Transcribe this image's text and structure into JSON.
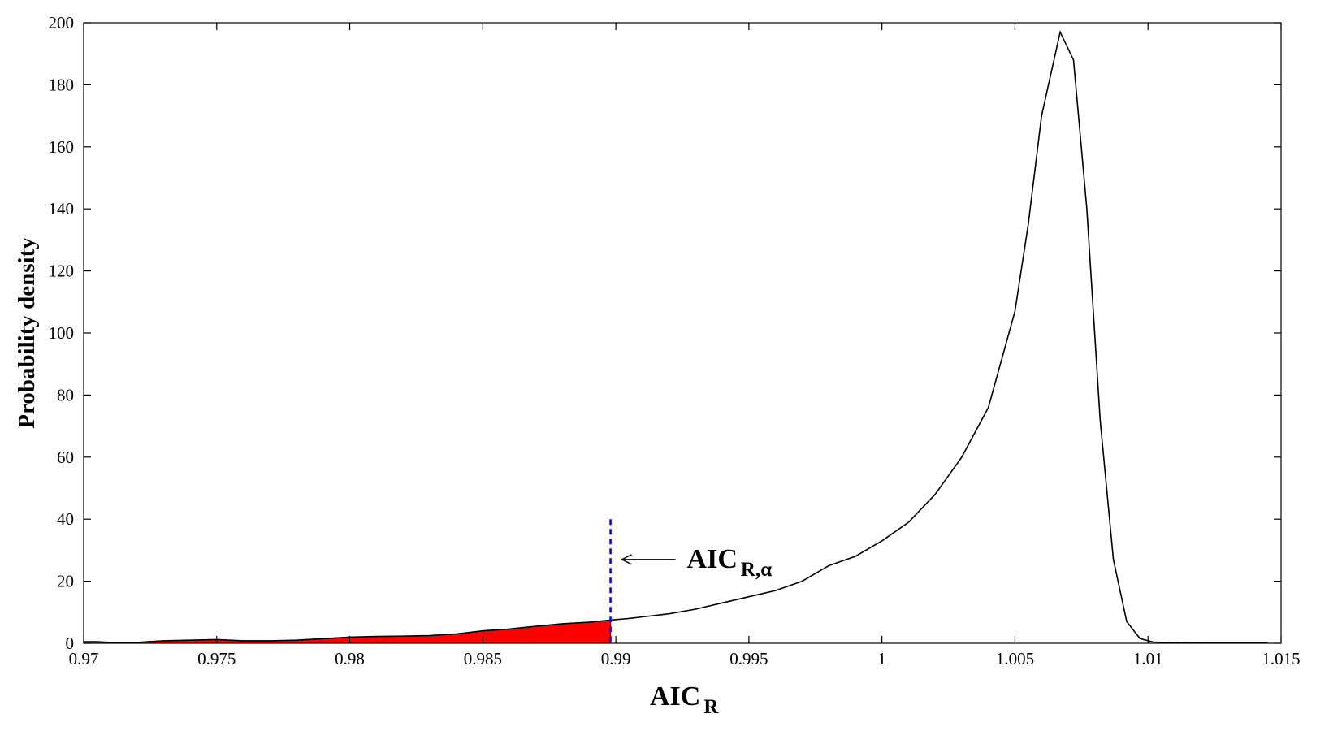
{
  "chart_data": {
    "type": "line",
    "title": "",
    "xlabel": {
      "main": "AIC",
      "sub": "R"
    },
    "ylabel": "Probability density",
    "xlim": [
      0.97,
      1.015
    ],
    "ylim": [
      0,
      200
    ],
    "grid": false,
    "x_ticks": [
      0.97,
      0.975,
      0.98,
      0.985,
      0.99,
      0.995,
      1,
      1.005,
      1.01,
      1.015
    ],
    "x_tick_labels": [
      "0.97",
      "0.975",
      "0.98",
      "0.985",
      "0.99",
      "0.995",
      "1",
      "1.005",
      "1.01",
      "1.015"
    ],
    "y_ticks": [
      0,
      20,
      40,
      60,
      80,
      100,
      120,
      140,
      160,
      180,
      200
    ],
    "y_tick_labels": [
      "0",
      "20",
      "40",
      "60",
      "80",
      "100",
      "120",
      "140",
      "160",
      "180",
      "200"
    ],
    "series": [
      {
        "color": "#000000",
        "x": [
          0.97,
          0.9705,
          0.971,
          0.9715,
          0.972,
          0.973,
          0.974,
          0.975,
          0.976,
          0.977,
          0.978,
          0.979,
          0.98,
          0.981,
          0.982,
          0.983,
          0.984,
          0.985,
          0.986,
          0.987,
          0.988,
          0.989,
          0.9898,
          0.9905,
          0.991,
          0.992,
          0.993,
          0.994,
          0.995,
          0.996,
          0.997,
          0.998,
          0.999,
          1.0,
          1.001,
          1.002,
          1.003,
          1.004,
          1.005,
          1.0055,
          1.006,
          1.0067,
          1.0072,
          1.0077,
          1.0082,
          1.0087,
          1.0092,
          1.0097,
          1.0102,
          1.011,
          1.012,
          1.013,
          1.014,
          1.0145
        ],
        "y": [
          0.5,
          0.5,
          0.3,
          0.3,
          0.3,
          0.8,
          1.0,
          1.2,
          0.8,
          0.8,
          1.0,
          1.5,
          2.0,
          2.2,
          2.3,
          2.5,
          3.0,
          4.0,
          4.6,
          5.5,
          6.3,
          6.8,
          7.5,
          8.0,
          8.5,
          9.5,
          11.0,
          13.0,
          15.0,
          17.0,
          20.0,
          25.0,
          28.0,
          33.0,
          39.0,
          48.0,
          60.0,
          76.0,
          107.0,
          135.0,
          170.0,
          197.0,
          188.0,
          140.0,
          72.0,
          27.0,
          7.0,
          1.5,
          0.4,
          0.2,
          0.1,
          0.1,
          0.1,
          0.1
        ]
      }
    ],
    "shaded_region": {
      "from_x": 0.97,
      "to_x": 0.9898,
      "color": "#ff0000"
    },
    "threshold": {
      "x": 0.9898,
      "y_top": 40,
      "color": "#0000cc",
      "style": "dashed"
    },
    "annotation": {
      "text_main": "AIC",
      "text_sub": "R,α",
      "arrow_to_x": 0.9898,
      "y": 27
    }
  }
}
